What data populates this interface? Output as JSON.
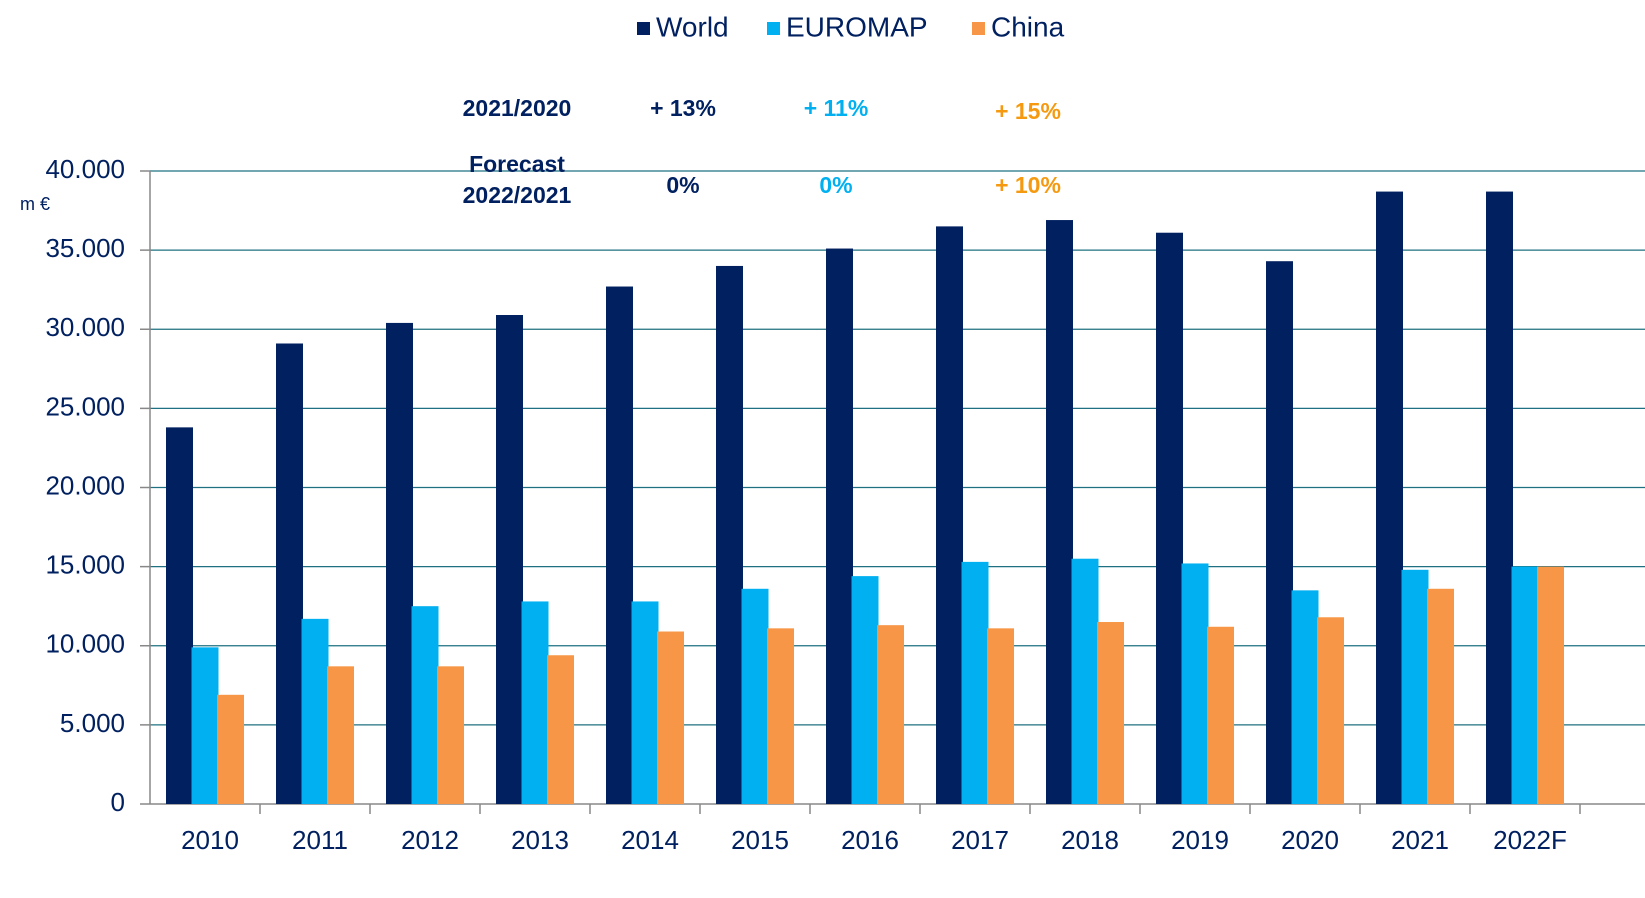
{
  "chart_data": {
    "type": "bar",
    "y_unit_label": "m €",
    "categories": [
      "2010",
      "2011",
      "2012",
      "2013",
      "2014",
      "2015",
      "2016",
      "2017",
      "2018",
      "2019",
      "2020",
      "2021",
      "2022F"
    ],
    "series": [
      {
        "name": "World",
        "color": "#002060",
        "values": [
          23800,
          29100,
          30400,
          30900,
          32700,
          34000,
          35100,
          36500,
          36900,
          36100,
          34300,
          38700,
          38700
        ]
      },
      {
        "name": "EUROMAP",
        "color": "#00b0f0",
        "values": [
          9900,
          11700,
          12500,
          12800,
          12800,
          13600,
          14400,
          15300,
          15500,
          15200,
          13500,
          14800,
          15000
        ]
      },
      {
        "name": "China",
        "color": "#f79646",
        "values": [
          6900,
          8700,
          8700,
          9400,
          10900,
          11100,
          11300,
          11100,
          11500,
          11200,
          11800,
          13600,
          15000
        ]
      }
    ],
    "ylim": [
      0,
      40000
    ],
    "yticks": [
      0,
      {
        "value": 5000,
        "label": "5.000"
      },
      {
        "value": 10000,
        "label": "10.000"
      },
      {
        "value": 15000,
        "label": "15.000"
      },
      {
        "value": 20000,
        "label": "20.000"
      },
      {
        "value": 25000,
        "label": "25.000"
      },
      {
        "value": 30000,
        "label": "30.000"
      },
      {
        "value": 35000,
        "label": "35.000"
      },
      {
        "value": 40000,
        "label": "40.000"
      }
    ],
    "grid": true,
    "legend": "top",
    "annotations": [
      {
        "label": [
          "2021/2020"
        ],
        "values": [
          "+ 13%",
          "+ 11%",
          "+ 15%"
        ]
      },
      {
        "label": [
          "Forecast",
          "2022/2021"
        ],
        "values": [
          "0%",
          "0%",
          "+ 10%"
        ]
      }
    ]
  }
}
